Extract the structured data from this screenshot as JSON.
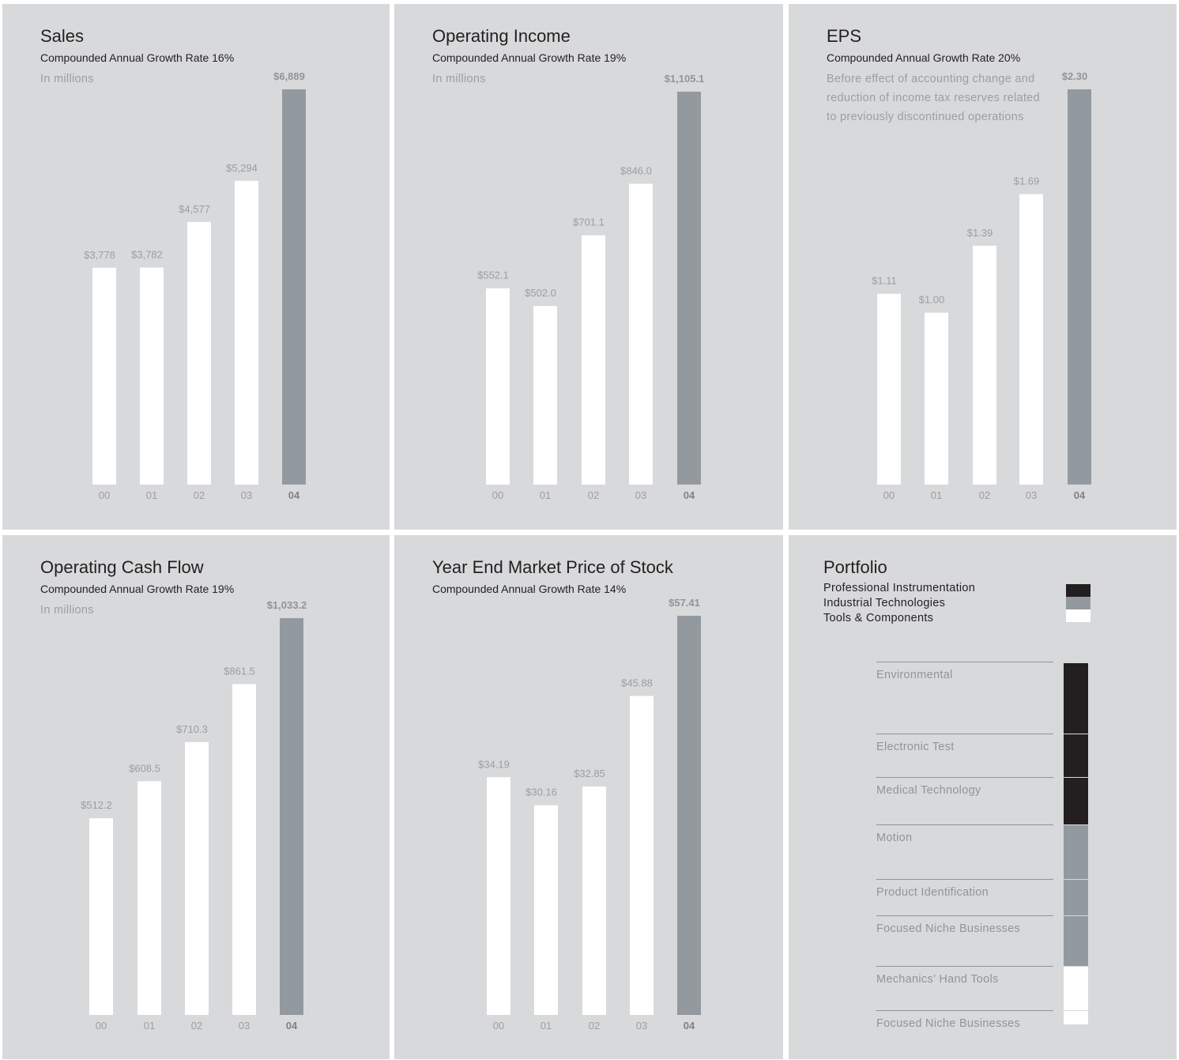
{
  "colors": {
    "background": "#d8d9db",
    "bar": "#ffffff",
    "bar_highlight": "#939a9f",
    "professional_instrumentation": "#231f20",
    "industrial_technologies": "#939a9f",
    "tools_components": "#ffffff"
  },
  "chart_data": [
    {
      "type": "bar",
      "title": "Sales",
      "subtitle": "Compounded Annual Growth Rate 16%",
      "note": "In millions",
      "categories": [
        "00",
        "01",
        "02",
        "03",
        "04"
      ],
      "values": [
        3778,
        3782,
        4577,
        5294,
        6889
      ],
      "value_labels": [
        "$3,778",
        "$3,782",
        "$4,577",
        "$5,294",
        "$6,889"
      ],
      "highlight": "04",
      "grid": false
    },
    {
      "type": "bar",
      "title": "Operating Income",
      "subtitle": "Compounded Annual Growth Rate 19%",
      "note": "In millions",
      "categories": [
        "00",
        "01",
        "02",
        "03",
        "04"
      ],
      "values": [
        552.1,
        502.0,
        701.1,
        846.0,
        1105.1
      ],
      "value_labels": [
        "$552.1",
        "$502.0",
        "$701.1",
        "$846.0",
        "$1,105.1"
      ],
      "highlight": "04",
      "grid": false
    },
    {
      "type": "bar",
      "title": "EPS",
      "subtitle": "Compounded Annual Growth Rate 20%",
      "note": "Before effect of accounting change and reduction of income tax reserves related to previously discontinued operations",
      "categories": [
        "00",
        "01",
        "02",
        "03",
        "04"
      ],
      "values": [
        1.11,
        1.0,
        1.39,
        1.69,
        2.3
      ],
      "value_labels": [
        "$1.11",
        "$1.00",
        "$1.39",
        "$1.69",
        "$2.30"
      ],
      "highlight": "04",
      "grid": false
    },
    {
      "type": "bar",
      "title": "Operating Cash Flow",
      "subtitle": "Compounded Annual Growth Rate 19%",
      "note": "In millions",
      "categories": [
        "00",
        "01",
        "02",
        "03",
        "04"
      ],
      "values": [
        512.2,
        608.5,
        710.3,
        861.5,
        1033.2
      ],
      "value_labels": [
        "$512.2",
        "$608.5",
        "$710.3",
        "$861.5",
        "$1,033.2"
      ],
      "highlight": "04",
      "grid": false
    },
    {
      "type": "bar",
      "title": "Year End Market Price of Stock",
      "subtitle": "Compounded Annual Growth Rate 14%",
      "note": "",
      "categories": [
        "00",
        "01",
        "02",
        "03",
        "04"
      ],
      "values": [
        34.19,
        30.16,
        32.85,
        45.88,
        57.41
      ],
      "value_labels": [
        "$34.19",
        "$30.16",
        "$32.85",
        "$45.88",
        "$57.41"
      ],
      "highlight": "04",
      "grid": false
    }
  ],
  "portfolio": {
    "title": "Portfolio",
    "legend": [
      {
        "label": "Professional Instrumentation",
        "color": "#231f20"
      },
      {
        "label": "Industrial Technologies",
        "color": "#939a9f"
      },
      {
        "label": "Tools & Components",
        "color": "#ffffff"
      }
    ],
    "segments": [
      {
        "label": "Environmental",
        "group": "Professional Instrumentation"
      },
      {
        "label": "Electronic Test",
        "group": "Professional Instrumentation"
      },
      {
        "label": "Medical Technology",
        "group": "Professional Instrumentation"
      },
      {
        "label": "Motion",
        "group": "Industrial Technologies"
      },
      {
        "label": "Product Identification",
        "group": "Industrial Technologies"
      },
      {
        "label": "Focused Niche Businesses",
        "group": "Industrial Technologies"
      },
      {
        "label": "Mechanics’ Hand Tools",
        "group": "Tools & Components"
      },
      {
        "label": "Focused Niche Businesses",
        "group": "Tools & Components"
      }
    ]
  }
}
